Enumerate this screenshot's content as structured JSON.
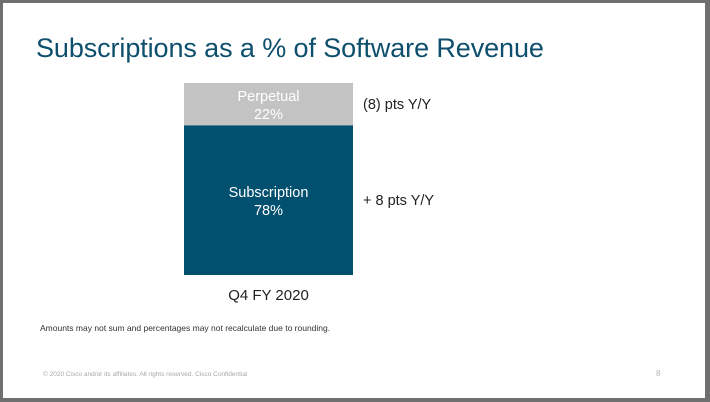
{
  "title": "Subscriptions as a % of Software Revenue",
  "chart_data": {
    "type": "bar",
    "stacked": true,
    "orientation": "vertical",
    "categories": [
      "Q4 FY 2020"
    ],
    "ylim": [
      0,
      100
    ],
    "series": [
      {
        "name": "Subscription",
        "values": [
          78
        ],
        "label": "78%",
        "color": "#02506f",
        "yoy": "+ 8 pts Y/Y"
      },
      {
        "name": "Perpetual",
        "values": [
          22
        ],
        "label": "22%",
        "color": "#c3c3c3",
        "yoy": "(8) pts Y/Y"
      }
    ],
    "grid": false,
    "legend": "none"
  },
  "footnote": "Amounts may not sum and percentages may not recalculate due to rounding.",
  "footer": {
    "copyright": "© 2020  Cisco and/or its affiliates. All rights reserved.   Cisco Confidential",
    "page_number": "8"
  }
}
